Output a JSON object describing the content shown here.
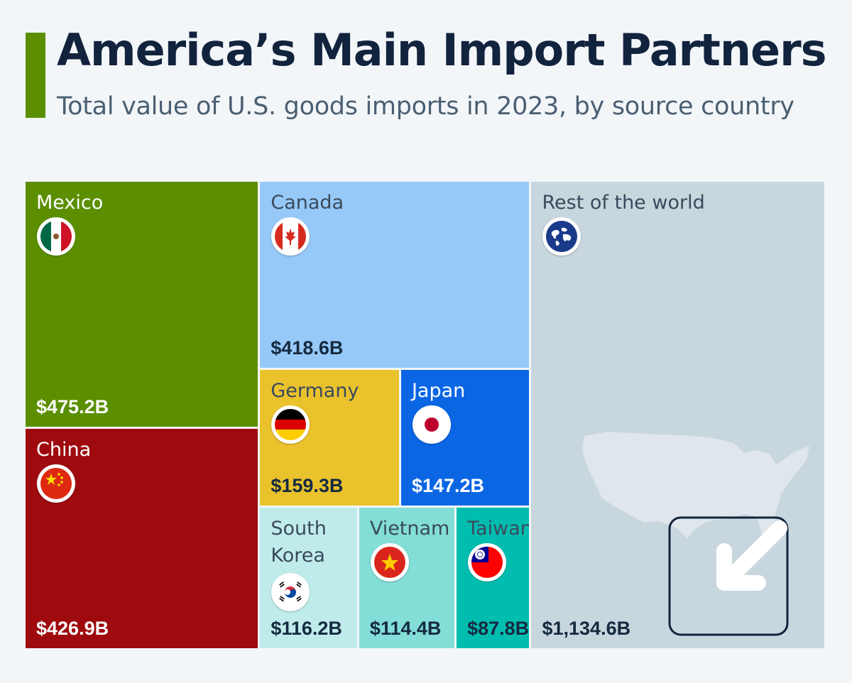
{
  "title": "America’s Main Import Partners",
  "subtitle": "Total value of U.S. goods imports in 2023, by source country",
  "colors": {
    "accent": "#5b8f00",
    "mexico": "#5b8f00",
    "china": "#9e0a0e",
    "canada": "#96c9f8",
    "germany": "#eac22c",
    "japan": "#0b66e4",
    "south_korea": "#c0ebeb",
    "vietnam": "#83ded8",
    "taiwan": "#00bdb0",
    "rest_of_world": "#c8d6de"
  },
  "chart_data": {
    "type": "treemap",
    "unit": "billion USD",
    "items": [
      {
        "name": "Mexico",
        "value": 475.2,
        "label": "$475.2B",
        "icon": "mexico-flag-icon"
      },
      {
        "name": "China",
        "value": 426.9,
        "label": "$426.9B",
        "icon": "china-flag-icon"
      },
      {
        "name": "Canada",
        "value": 418.6,
        "label": "$418.6B",
        "icon": "canada-flag-icon"
      },
      {
        "name": "Germany",
        "value": 159.3,
        "label": "$159.3B",
        "icon": "germany-flag-icon"
      },
      {
        "name": "Japan",
        "value": 147.2,
        "label": "$147.2B",
        "icon": "japan-flag-icon"
      },
      {
        "name": "South Korea",
        "value": 116.2,
        "label": "$116.2B",
        "icon": "south-korea-flag-icon"
      },
      {
        "name": "Vietnam",
        "value": 114.4,
        "label": "$114.4B",
        "icon": "vietnam-flag-icon"
      },
      {
        "name": "Taiwan",
        "value": 87.8,
        "label": "$87.8B",
        "icon": "taiwan-flag-icon"
      },
      {
        "name": "Rest of the world",
        "value": 1134.6,
        "label": "$1,134.6B",
        "icon": "globe-icon"
      }
    ]
  }
}
